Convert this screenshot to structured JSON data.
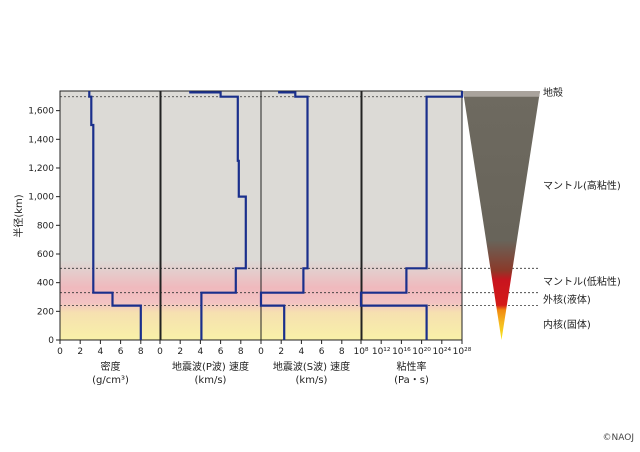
{
  "chart_data": {
    "type": "line",
    "y_axis": {
      "label": "半径(km)",
      "ylim": [
        0,
        1737
      ],
      "ticks": [
        0,
        200,
        400,
        600,
        800,
        1000,
        1200,
        1400,
        1600
      ],
      "tick_labels": [
        "0",
        "200",
        "400",
        "600",
        "800",
        "1,000",
        "1,200",
        "1,400",
        "1,600"
      ]
    },
    "panels": [
      {
        "name": "density",
        "xlabel": "密度",
        "xlabel_unit": "(g/cm³)",
        "xlim": [
          0,
          10
        ],
        "ticks": [
          0,
          2,
          4,
          6,
          8
        ],
        "tick_labels": [
          "0",
          "2",
          "4",
          "6",
          "8"
        ],
        "profile": [
          [
            8.0,
            0
          ],
          [
            8.0,
            240
          ],
          [
            5.2,
            240
          ],
          [
            5.2,
            330
          ],
          [
            3.3,
            330
          ],
          [
            3.3,
            1500
          ],
          [
            3.1,
            1500
          ],
          [
            3.1,
            1697
          ],
          [
            2.9,
            1697
          ],
          [
            2.9,
            1737
          ]
        ]
      },
      {
        "name": "p-wave",
        "xlabel": "地震波(P波) 速度",
        "xlabel_unit": "(km/s)",
        "xlim": [
          0,
          10
        ],
        "ticks": [
          0,
          2,
          4,
          6,
          8
        ],
        "tick_labels": [
          "0",
          "2",
          "4",
          "6",
          "8"
        ],
        "profile": [
          [
            4.1,
            0
          ],
          [
            4.1,
            240
          ],
          [
            4.1,
            330
          ],
          [
            7.5,
            330
          ],
          [
            7.5,
            500
          ],
          [
            8.5,
            500
          ],
          [
            8.5,
            1000
          ],
          [
            7.8,
            1000
          ],
          [
            7.8,
            1250
          ],
          [
            7.7,
            1250
          ],
          [
            7.7,
            1697
          ],
          [
            6.0,
            1697
          ],
          [
            6.0,
            1727
          ],
          [
            3.0,
            1727
          ],
          [
            3.0,
            1737
          ]
        ]
      },
      {
        "name": "s-wave",
        "xlabel": "地震波(S波) 速度",
        "xlabel_unit": "(km/s)",
        "xlim": [
          0,
          10
        ],
        "ticks": [
          0,
          2,
          4,
          6,
          8
        ],
        "tick_labels": [
          "0",
          "2",
          "4",
          "6",
          "8"
        ],
        "profile": [
          [
            2.3,
            0
          ],
          [
            2.3,
            240
          ],
          [
            0.0,
            240
          ],
          [
            0.0,
            330
          ],
          [
            4.2,
            330
          ],
          [
            4.2,
            500
          ],
          [
            4.6,
            500
          ],
          [
            4.6,
            1697
          ],
          [
            3.4,
            1697
          ],
          [
            3.4,
            1727
          ],
          [
            1.8,
            1727
          ],
          [
            1.8,
            1737
          ]
        ]
      },
      {
        "name": "viscosity",
        "xlabel": "粘性率",
        "xlabel_unit": "(Pa・s)",
        "xscale": "log",
        "xlim": [
          8,
          28
        ],
        "ticks": [
          8,
          12,
          16,
          20,
          24,
          28
        ],
        "tick_labels": [
          "10⁸",
          "10¹²",
          "10¹⁶",
          "10²⁰",
          "10²⁴",
          "10²⁸"
        ],
        "profile": [
          [
            21,
            0
          ],
          [
            21,
            240
          ],
          [
            8,
            240
          ],
          [
            8,
            330
          ],
          [
            17,
            330
          ],
          [
            17,
            500
          ],
          [
            21,
            500
          ],
          [
            21,
            1697
          ],
          [
            28,
            1697
          ],
          [
            28,
            1737
          ]
        ]
      }
    ],
    "boundaries_km": [
      240,
      330,
      500,
      1697
    ],
    "layers": [
      {
        "name": "地殻",
        "color": "#a9a39c"
      },
      {
        "name": "マントル(高粘性)",
        "color": "#6b665c"
      },
      {
        "name": "マントル(低粘性)",
        "color": "#c8141e"
      },
      {
        "name": "外核(液体)",
        "color": "#f08a10"
      },
      {
        "name": "内核(固体)",
        "color": "#f7e11a"
      }
    ],
    "line_color": "#1a2f8c",
    "grid": false
  },
  "credit": "©NAOJ"
}
